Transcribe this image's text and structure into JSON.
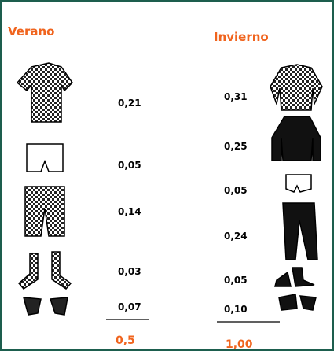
{
  "summer": {
    "title": "Verano",
    "items": [
      "0,21",
      "0,05",
      "0,14",
      "0,03",
      "0,07"
    ],
    "total": "0,5"
  },
  "winter": {
    "title": "Invierno",
    "items": [
      "0,31",
      "0,25",
      "0,05",
      "0,24",
      "0,05",
      "0,10"
    ],
    "total": "1,00"
  }
}
